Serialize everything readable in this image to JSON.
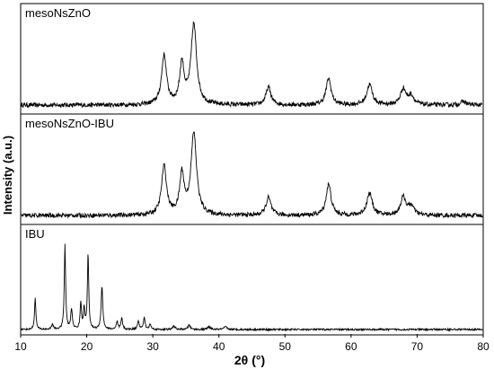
{
  "chart_data": {
    "type": "line",
    "title": "",
    "xlabel_symbol": "2θ",
    "xlabel_unit": "(°)",
    "ylabel": "Intensity (a.u.)",
    "xlim": [
      10,
      80
    ],
    "xticks": [
      10,
      20,
      30,
      40,
      50,
      60,
      70,
      80
    ],
    "y_ticks_shown": false,
    "grid": false,
    "layout": "three vertically stacked panels sharing the x axis",
    "line_color": "#000000",
    "series": [
      {
        "name": "mesoNsZnO",
        "baseline": 0.06,
        "noise": 0.05,
        "peaks": [
          {
            "x": 31.7,
            "h": 0.55,
            "w": 0.45
          },
          {
            "x": 34.4,
            "h": 0.45,
            "w": 0.4
          },
          {
            "x": 36.2,
            "h": 0.9,
            "w": 0.5
          },
          {
            "x": 47.5,
            "h": 0.2,
            "w": 0.45
          },
          {
            "x": 56.6,
            "h": 0.3,
            "w": 0.45
          },
          {
            "x": 62.8,
            "h": 0.23,
            "w": 0.5
          },
          {
            "x": 67.9,
            "h": 0.18,
            "w": 0.5
          },
          {
            "x": 69.1,
            "h": 0.1,
            "w": 0.5
          },
          {
            "x": 77.0,
            "h": 0.04,
            "w": 0.5
          }
        ]
      },
      {
        "name": "mesoNsZnO-IBU",
        "baseline": 0.06,
        "noise": 0.05,
        "peaks": [
          {
            "x": 31.7,
            "h": 0.55,
            "w": 0.45
          },
          {
            "x": 34.4,
            "h": 0.45,
            "w": 0.4
          },
          {
            "x": 36.2,
            "h": 0.92,
            "w": 0.5
          },
          {
            "x": 47.5,
            "h": 0.2,
            "w": 0.45
          },
          {
            "x": 56.6,
            "h": 0.35,
            "w": 0.45
          },
          {
            "x": 62.8,
            "h": 0.25,
            "w": 0.5
          },
          {
            "x": 67.9,
            "h": 0.2,
            "w": 0.5
          },
          {
            "x": 69.1,
            "h": 0.1,
            "w": 0.5
          }
        ]
      },
      {
        "name": "IBU",
        "baseline": 0.02,
        "noise": 0.02,
        "peaks": [
          {
            "x": 12.2,
            "h": 0.35,
            "w": 0.12
          },
          {
            "x": 14.8,
            "h": 0.06,
            "w": 0.15
          },
          {
            "x": 16.7,
            "h": 0.95,
            "w": 0.12
          },
          {
            "x": 17.7,
            "h": 0.22,
            "w": 0.15
          },
          {
            "x": 19.1,
            "h": 0.3,
            "w": 0.12
          },
          {
            "x": 19.6,
            "h": 0.24,
            "w": 0.12
          },
          {
            "x": 20.2,
            "h": 0.85,
            "w": 0.12
          },
          {
            "x": 22.3,
            "h": 0.48,
            "w": 0.15
          },
          {
            "x": 24.6,
            "h": 0.08,
            "w": 0.15
          },
          {
            "x": 25.3,
            "h": 0.12,
            "w": 0.15
          },
          {
            "x": 27.8,
            "h": 0.1,
            "w": 0.15
          },
          {
            "x": 28.7,
            "h": 0.13,
            "w": 0.15
          },
          {
            "x": 29.6,
            "h": 0.06,
            "w": 0.15
          },
          {
            "x": 33.2,
            "h": 0.04,
            "w": 0.2
          },
          {
            "x": 35.5,
            "h": 0.05,
            "w": 0.2
          },
          {
            "x": 38.5,
            "h": 0.03,
            "w": 0.25
          },
          {
            "x": 41.0,
            "h": 0.03,
            "w": 0.25
          }
        ]
      }
    ]
  }
}
